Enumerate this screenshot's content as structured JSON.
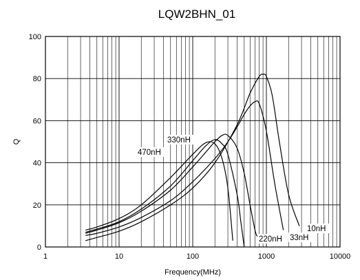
{
  "chart_data": {
    "type": "line",
    "title": "LQW2BHN_01",
    "xlabel": "Frequency(MHz)",
    "ylabel": "Q",
    "xscale": "log",
    "xlim": [
      1,
      10000
    ],
    "ylim": [
      0,
      100
    ],
    "x_ticks": [
      1,
      10,
      100,
      1000,
      10000
    ],
    "x_tick_labels": [
      "1",
      "10",
      "100",
      "1000",
      "10000"
    ],
    "y_ticks": [
      0,
      20,
      40,
      60,
      80,
      100
    ],
    "y_tick_labels": [
      "0",
      "20",
      "40",
      "60",
      "80",
      "100"
    ],
    "grid": true,
    "legend": "none",
    "series": [
      {
        "name": "10nH",
        "x": [
          3.5,
          5,
          10,
          20,
          50,
          100,
          200,
          400,
          600,
          800,
          900,
          1000,
          1200,
          1500,
          2000,
          2800
        ],
        "y": [
          3,
          4.5,
          7.5,
          12,
          20,
          28,
          40,
          58,
          73,
          81,
          82,
          81,
          72,
          50,
          25,
          10
        ]
      },
      {
        "name": "33nH",
        "x": [
          3.5,
          5,
          10,
          20,
          50,
          100,
          200,
          300,
          400,
          500,
          600,
          700,
          800,
          1000,
          1300,
          1700
        ],
        "y": [
          5.5,
          6.5,
          9.5,
          14,
          22,
          31,
          42,
          50,
          57,
          63,
          67,
          69,
          68,
          55,
          30,
          8
        ]
      },
      {
        "name": "220nH",
        "x": [
          3.5,
          5,
          10,
          20,
          50,
          100,
          150,
          200,
          250,
          300,
          400,
          500,
          600,
          700,
          750
        ],
        "y": [
          6.5,
          8,
          11.5,
          17,
          27,
          38,
          45,
          50,
          53,
          53,
          47,
          35,
          20,
          8,
          5
        ]
      },
      {
        "name": "330nH",
        "x": [
          3.5,
          5,
          10,
          20,
          50,
          100,
          150,
          200,
          250,
          300,
          400,
          450,
          500
        ],
        "y": [
          7,
          8.5,
          12,
          18,
          29,
          41,
          48,
          51,
          49,
          44,
          25,
          12,
          0
        ]
      },
      {
        "name": "470nH",
        "x": [
          3.5,
          5,
          10,
          20,
          50,
          100,
          150,
          200,
          250,
          300,
          350
        ],
        "y": [
          8,
          9.5,
          13.5,
          20,
          33,
          44,
          49.5,
          49,
          42,
          28,
          3
        ]
      }
    ],
    "annotations": [
      "470nH",
      "330nH",
      "220nH",
      "33nH",
      "10nH"
    ]
  }
}
